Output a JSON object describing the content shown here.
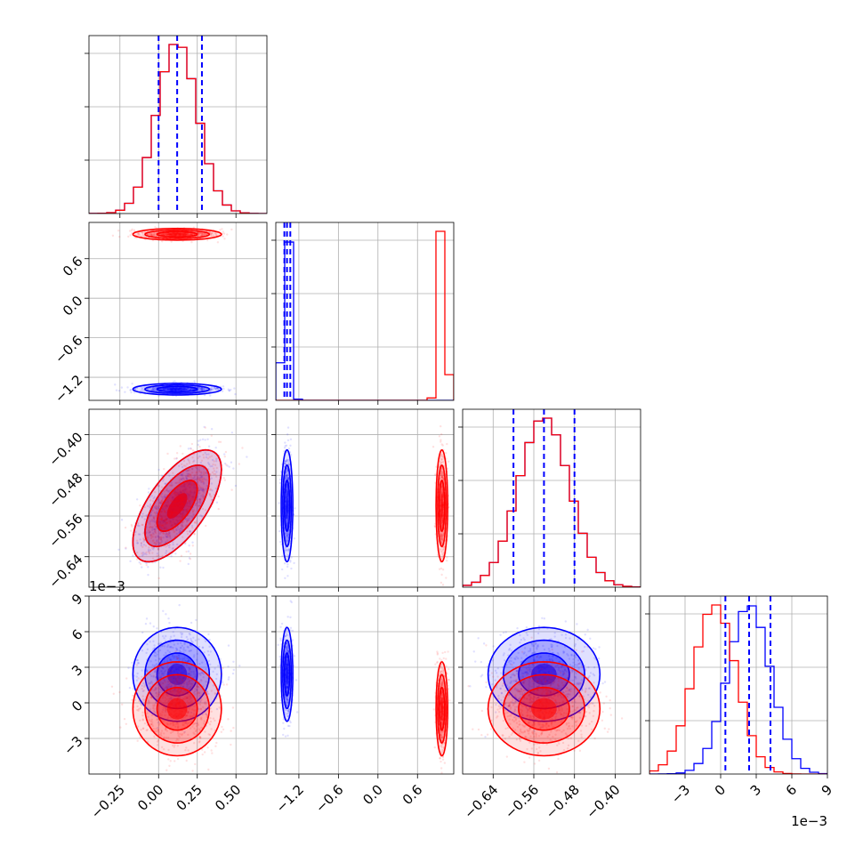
{
  "chart_data": {
    "type": "corner",
    "grid": true,
    "colors": {
      "series_a": "#0000ff",
      "series_b": "#ff0000"
    },
    "params": [
      {
        "range": [
          -0.45,
          0.7
        ],
        "ticks": [
          -0.25,
          0.0,
          0.25,
          0.5
        ],
        "labels": [
          "−0.25",
          "0.00",
          "0.25",
          "0.50"
        ],
        "offset": ""
      },
      {
        "range": [
          -1.55,
          1.15
        ],
        "ticks": [
          -1.2,
          -0.6,
          0.0,
          0.6
        ],
        "labels": [
          "−1.2",
          "−0.6",
          "0.0",
          "0.6"
        ],
        "offset": ""
      },
      {
        "range": [
          -0.7,
          -0.35
        ],
        "ticks": [
          -0.64,
          -0.56,
          -0.48,
          -0.4
        ],
        "labels": [
          "−0.64",
          "−0.56",
          "−0.48",
          "−0.40"
        ],
        "offset": ""
      },
      {
        "range": [
          -6.0,
          9.0
        ],
        "ticks": [
          -3,
          0,
          3,
          6,
          9
        ],
        "labels": [
          "−3",
          "0",
          "3",
          "6",
          "9"
        ],
        "offset": "1e−3"
      }
    ],
    "quantile_lines": [
      [
        0.0,
        0.12,
        0.28
      ],
      [
        -1.42,
        -1.38,
        -1.33
      ],
      [
        -0.6,
        -0.54,
        -0.48
      ],
      [
        0.4,
        2.4,
        4.2
      ]
    ],
    "series": [
      {
        "name": "",
        "color": "#0000ff",
        "mean": [
          0.12,
          -1.38,
          -0.54,
          2.4
        ],
        "std": [
          0.13,
          0.04,
          0.05,
          1.8
        ],
        "corr": {
          "0-2": 0.65
        }
      },
      {
        "name": "",
        "color": "#ff0000",
        "mean": [
          0.12,
          0.97,
          -0.54,
          -0.5
        ],
        "std": [
          0.13,
          0.04,
          0.05,
          1.8
        ],
        "corr": {
          "0-2": 0.65
        }
      }
    ]
  }
}
